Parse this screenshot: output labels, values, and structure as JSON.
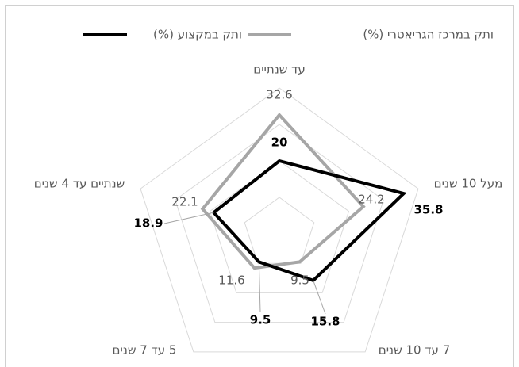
{
  "chart_data": {
    "type": "radar",
    "categories": [
      "עד שנתיים",
      "מעל 10 שנים",
      "7 עד 10 שנים",
      "5 עד 7 שנים",
      "שנתיים עד 4 שנים"
    ],
    "series": [
      {
        "name": "ותק במקצוע (%)",
        "color": "#000000",
        "values": [
          20,
          35.8,
          15.8,
          9.5,
          18.9
        ]
      },
      {
        "name": "ותק במרכז הגריאטרי (%)",
        "color": "#a6a6a6",
        "values": [
          32.6,
          24.2,
          9.5,
          11.6,
          22.1
        ]
      }
    ],
    "ylim": [
      0,
      40
    ],
    "yticks": [
      0,
      10,
      20,
      30,
      40
    ],
    "grid": true
  }
}
